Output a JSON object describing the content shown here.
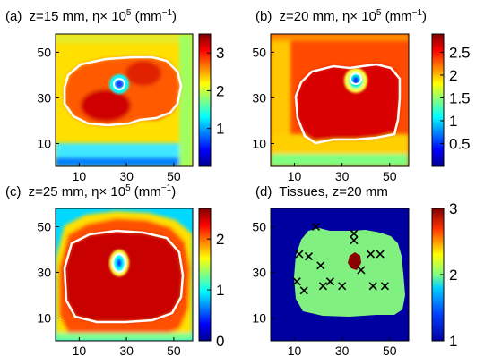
{
  "figure": {
    "panels": [
      {
        "label": "(a)",
        "title": "z=15 mm, η× 10",
        "sup": "5",
        "unit": " (mm",
        "unit_sup": "−1",
        "close": ")"
      },
      {
        "label": "(b)",
        "title": "z=20 mm, η× 10",
        "sup": "5",
        "unit": " (mm",
        "unit_sup": "−1",
        "close": ")"
      },
      {
        "label": "(c)",
        "title": "z=25 mm, η× 10",
        "sup": "5",
        "unit": " (mm",
        "unit_sup": "−1",
        "close": ")"
      },
      {
        "label": "(d)",
        "title": "Tissues, z=20 mm",
        "sup": "",
        "unit": "",
        "unit_sup": "",
        "close": ""
      }
    ]
  },
  "chart_data": [
    {
      "type": "heatmap",
      "panel": "(a)",
      "title": "z=15 mm, η× 10^5 (mm^-1)",
      "x_ticks": [
        10,
        30,
        50
      ],
      "y_ticks": [
        10,
        30,
        50
      ],
      "xlim": [
        0,
        58
      ],
      "ylim": [
        0,
        58
      ],
      "colorbar": {
        "ticks": [
          "1",
          "2",
          "3"
        ],
        "tick_values": [
          1,
          2,
          3
        ],
        "range": [
          0,
          3.5
        ]
      },
      "features": {
        "background_value": 1.9,
        "body_value": 2.6,
        "hotspot_value": 3.4,
        "inclusion_center": [
          27,
          36
        ],
        "inclusion_min": 0.3,
        "contour_color": "#ffffff"
      }
    },
    {
      "type": "heatmap",
      "panel": "(b)",
      "title": "z=20 mm, η× 10^5 (mm^-1)",
      "x_ticks": [
        10,
        30,
        50
      ],
      "y_ticks": [
        10,
        30,
        50
      ],
      "xlim": [
        0,
        58
      ],
      "ylim": [
        0,
        58
      ],
      "colorbar": {
        "ticks": [
          "0.5",
          "1",
          "1.5",
          "2",
          "2.5"
        ],
        "tick_values": [
          0.5,
          1,
          1.5,
          2,
          2.5
        ],
        "range": [
          0,
          2.9
        ]
      },
      "features": {
        "background_value": 1.9,
        "body_value": 2.55,
        "inclusion_center": [
          27,
          35
        ],
        "inclusion_min": 0.3,
        "contour_color": "#ffffff"
      }
    },
    {
      "type": "heatmap",
      "panel": "(c)",
      "title": "z=25 mm, η× 10^5 (mm^-1)",
      "x_ticks": [
        10,
        30,
        50
      ],
      "y_ticks": [
        10,
        30,
        50
      ],
      "xlim": [
        0,
        58
      ],
      "ylim": [
        0,
        58
      ],
      "colorbar": {
        "ticks": [
          "0",
          "1",
          "2"
        ],
        "tick_values": [
          0,
          1,
          2
        ],
        "range": [
          0,
          2.6
        ]
      },
      "features": {
        "background_value": 2.2,
        "body_value": 2.5,
        "inclusion_center": [
          27,
          34
        ],
        "inclusion_min": 0.4,
        "contour_color": "#ffffff"
      }
    },
    {
      "type": "heatmap",
      "panel": "(d)",
      "title": "Tissues, z=20 mm",
      "x_ticks": [
        10,
        30,
        50
      ],
      "y_ticks": [
        10,
        30,
        50
      ],
      "xlim": [
        0,
        58
      ],
      "ylim": [
        0,
        58
      ],
      "colorbar": {
        "ticks": [
          "1",
          "2",
          "3"
        ],
        "tick_values": [
          1,
          2,
          3
        ],
        "range": [
          1,
          3
        ]
      },
      "categories": [
        {
          "value": 1,
          "color": "#0000a0"
        },
        {
          "value": 2,
          "color": "#80f080"
        },
        {
          "value": 3,
          "color": "#8b0000"
        }
      ],
      "markers": [
        {
          "x": 19,
          "y": 50
        },
        {
          "x": 35,
          "y": 47
        },
        {
          "x": 35,
          "y": 44
        },
        {
          "x": 12,
          "y": 38
        },
        {
          "x": 16,
          "y": 37
        },
        {
          "x": 42,
          "y": 38
        },
        {
          "x": 46,
          "y": 38
        },
        {
          "x": 21,
          "y": 33
        },
        {
          "x": 38,
          "y": 31
        },
        {
          "x": 11,
          "y": 26
        },
        {
          "x": 14,
          "y": 22
        },
        {
          "x": 22,
          "y": 24
        },
        {
          "x": 25,
          "y": 26
        },
        {
          "x": 30,
          "y": 24
        },
        {
          "x": 43,
          "y": 24
        },
        {
          "x": 48,
          "y": 24
        }
      ],
      "inclusion_center": [
        30,
        34
      ]
    }
  ]
}
